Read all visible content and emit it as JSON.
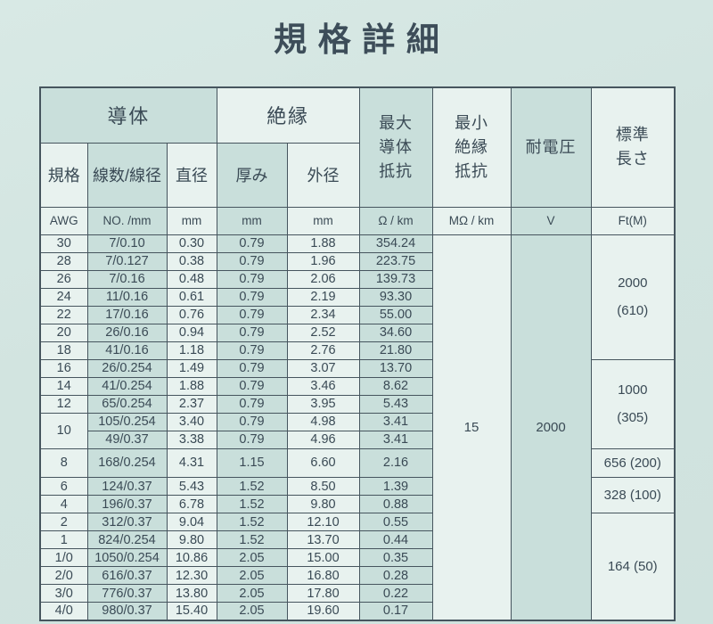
{
  "title": "規格詳細",
  "colors": {
    "background": "#d3e5e1",
    "cell_light": "#e8f2ef",
    "cell_dark": "#c9dfdb",
    "grid_line": "#46555e",
    "text": "#3a4a55"
  },
  "table": {
    "group_headers": {
      "conductor": "導体",
      "insulation": "絶縁"
    },
    "column_headers": {
      "awg": "規格",
      "strands": "線数/線径",
      "diameter": "直径",
      "thickness": "厚み",
      "outer_diameter": "外径",
      "max_conductor_resistance": "最大\n導体\n抵抗",
      "min_insulation_resistance": "最小\n絶縁\n抵抗",
      "withstand_voltage": "耐電圧",
      "standard_length": "標準\n長さ"
    },
    "units": [
      "AWG",
      "NO. /mm",
      "mm",
      "mm",
      "mm",
      "Ω / km",
      "MΩ / km",
      "V",
      "Ft(M)"
    ],
    "min_insulation_resistance_value": "15",
    "withstand_voltage_value": "2000",
    "rows": [
      [
        "30",
        "7/0.10",
        "0.30",
        "0.79",
        "1.88",
        "354.24"
      ],
      [
        "28",
        "7/0.127",
        "0.38",
        "0.79",
        "1.96",
        "223.75"
      ],
      [
        "26",
        "7/0.16",
        "0.48",
        "0.79",
        "2.06",
        "139.73"
      ],
      [
        "24",
        "11/0.16",
        "0.61",
        "0.79",
        "2.19",
        "93.30"
      ],
      [
        "22",
        "17/0.16",
        "0.76",
        "0.79",
        "2.34",
        "55.00"
      ],
      [
        "20",
        "26/0.16",
        "0.94",
        "0.79",
        "2.52",
        "34.60"
      ],
      [
        "18",
        "41/0.16",
        "1.18",
        "0.79",
        "2.76",
        "21.80"
      ],
      [
        "16",
        "26/0.254",
        "1.49",
        "0.79",
        "3.07",
        "13.70"
      ],
      [
        "14",
        "41/0.254",
        "1.88",
        "0.79",
        "3.46",
        "8.62"
      ],
      [
        "12",
        "65/0.254",
        "2.37",
        "0.79",
        "3.95",
        "5.43"
      ],
      [
        "10",
        "105/0.254",
        "3.40",
        "0.79",
        "4.98",
        "3.41"
      ],
      [
        null,
        "49/0.37",
        "3.38",
        "0.79",
        "4.96",
        "3.41"
      ],
      [
        "8",
        "168/0.254",
        "4.31",
        "1.15",
        "6.60",
        "2.16"
      ],
      [
        "6",
        "124/0.37",
        "5.43",
        "1.52",
        "8.50",
        "1.39"
      ],
      [
        "4",
        "196/0.37",
        "6.78",
        "1.52",
        "9.80",
        "0.88"
      ],
      [
        "2",
        "312/0.37",
        "9.04",
        "1.52",
        "12.10",
        "0.55"
      ],
      [
        "1",
        "824/0.254",
        "9.80",
        "1.52",
        "13.70",
        "0.44"
      ],
      [
        "1/0",
        "1050/0.254",
        "10.86",
        "2.05",
        "15.00",
        "0.35"
      ],
      [
        "2/0",
        "616/0.37",
        "12.30",
        "2.05",
        "16.80",
        "0.28"
      ],
      [
        "3/0",
        "776/0.37",
        "13.80",
        "2.05",
        "17.80",
        "0.22"
      ],
      [
        "4/0",
        "980/0.37",
        "15.40",
        "2.05",
        "19.60",
        "0.17"
      ]
    ],
    "length_blocks": [
      {
        "text": "2000\n(610)",
        "span": 7
      },
      {
        "text": "1000\n(305)",
        "span": 5
      },
      {
        "text": "656 (200)",
        "span": 1
      },
      {
        "text": "328 (100)",
        "span": 2
      },
      {
        "text": "164 (50)",
        "span": 6
      }
    ]
  }
}
